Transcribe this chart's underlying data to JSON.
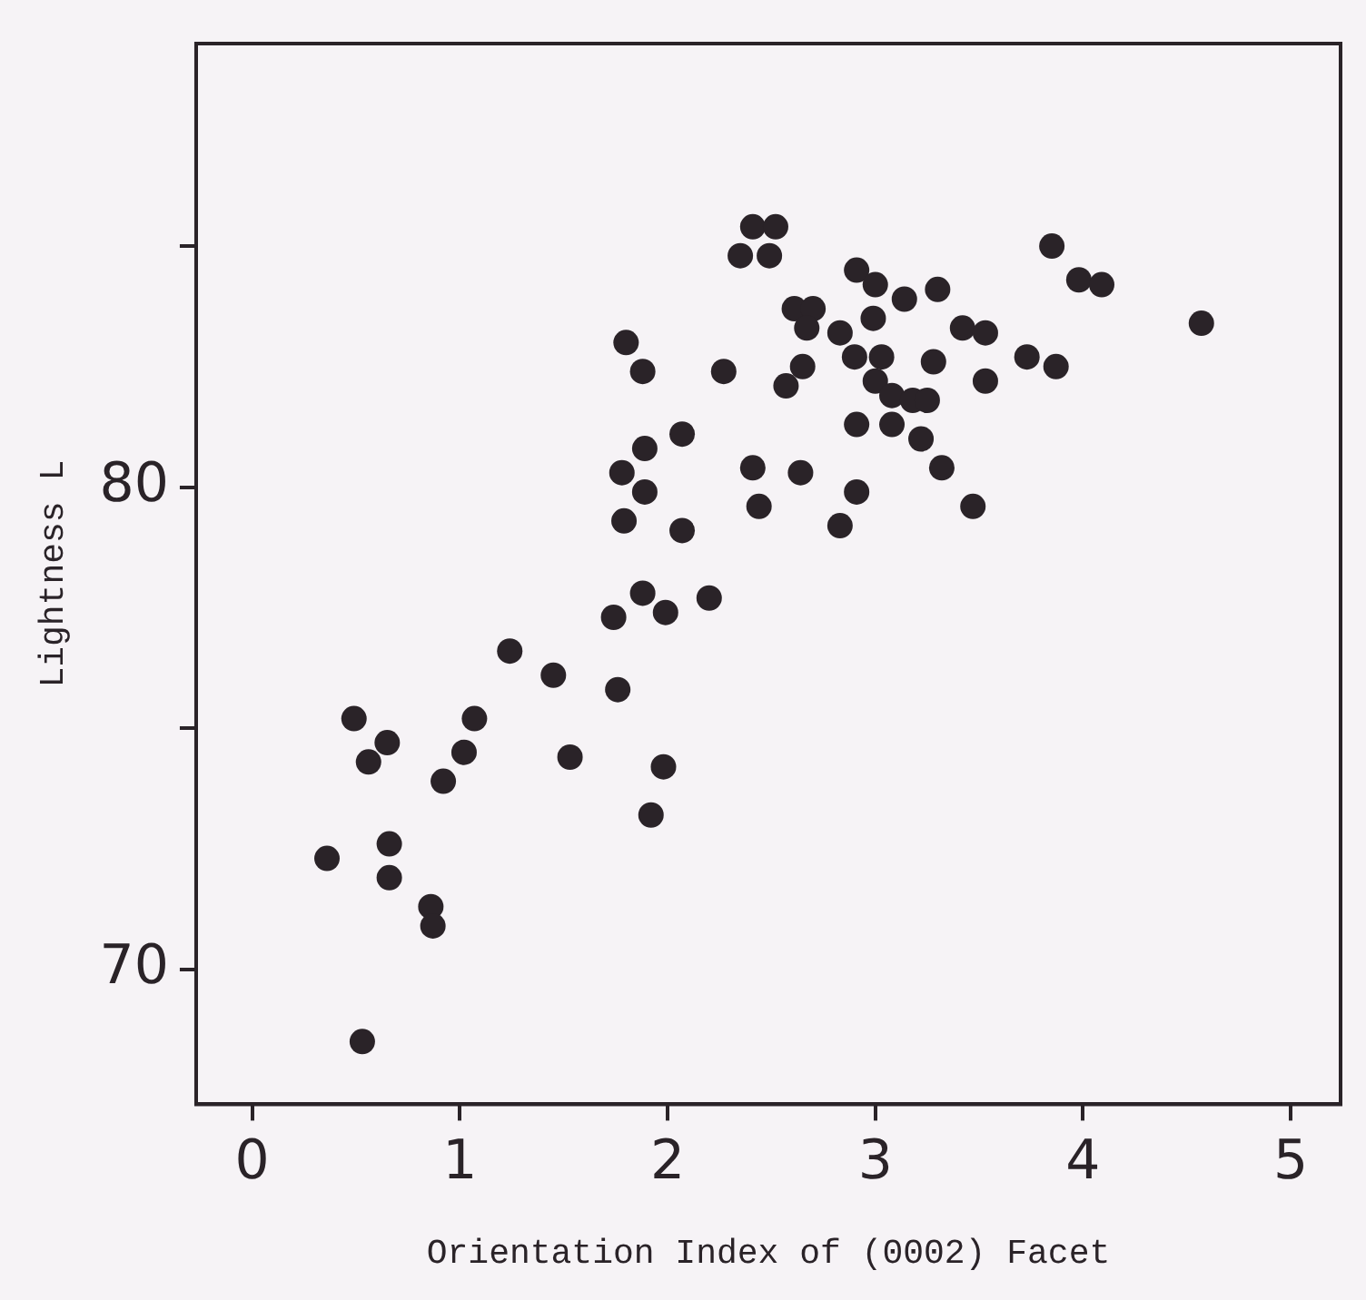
{
  "chart_data": {
    "type": "scatter",
    "xlabel": "Orientation Index of (0002) Facet",
    "ylabel": "Lightness L",
    "xlim": [
      -0.27,
      5.24
    ],
    "ylim": [
      67.2,
      89.2
    ],
    "xticks": [
      0,
      1,
      2,
      3,
      4,
      5
    ],
    "yticks": [
      70,
      {
        "value": 75,
        "label": null
      },
      80,
      {
        "value": 85,
        "label": null
      }
    ],
    "grid": false,
    "legend": false,
    "marker": "circle",
    "series": [
      {
        "color": "#2a2328",
        "x": [
          0.53,
          0.36,
          0.66,
          0.66,
          0.86,
          0.87,
          0.49,
          0.65,
          0.56,
          0.92,
          1.02,
          1.07,
          1.24,
          1.45,
          1.53,
          1.76,
          1.98,
          1.92,
          1.74,
          1.88,
          1.99,
          2.2,
          1.79,
          1.89,
          1.78,
          1.89,
          2.07,
          2.07,
          1.8,
          1.88,
          2.27,
          2.41,
          2.44,
          2.64,
          2.35,
          2.41,
          2.52,
          2.49,
          2.57,
          2.65,
          2.61,
          2.7,
          2.67,
          2.83,
          2.91,
          3.0,
          3.14,
          3.3,
          2.99,
          2.9,
          3.03,
          3.0,
          3.08,
          3.18,
          3.25,
          3.28,
          2.91,
          3.08,
          3.22,
          2.91,
          2.83,
          3.32,
          3.47,
          3.42,
          3.53,
          3.53,
          3.73,
          3.87,
          3.85,
          3.98,
          4.09,
          4.57
        ],
        "values": [
          68.5,
          72.3,
          72.6,
          71.9,
          71.3,
          70.9,
          75.2,
          74.7,
          74.3,
          73.9,
          74.5,
          75.2,
          76.6,
          76.1,
          74.4,
          75.8,
          74.2,
          73.2,
          77.3,
          77.8,
          77.4,
          77.7,
          79.3,
          79.9,
          80.3,
          80.8,
          79.1,
          81.1,
          83.0,
          82.4,
          82.4,
          80.4,
          79.6,
          80.3,
          84.8,
          85.4,
          85.4,
          84.8,
          82.1,
          82.5,
          83.7,
          83.7,
          83.3,
          83.2,
          84.5,
          84.2,
          83.9,
          84.1,
          83.5,
          82.7,
          82.7,
          82.2,
          81.9,
          81.8,
          81.8,
          82.6,
          81.3,
          81.3,
          81.0,
          79.9,
          79.2,
          80.4,
          79.6,
          83.3,
          83.2,
          82.2,
          82.7,
          82.5,
          85.0,
          84.3,
          84.2,
          83.4
        ]
      }
    ]
  }
}
